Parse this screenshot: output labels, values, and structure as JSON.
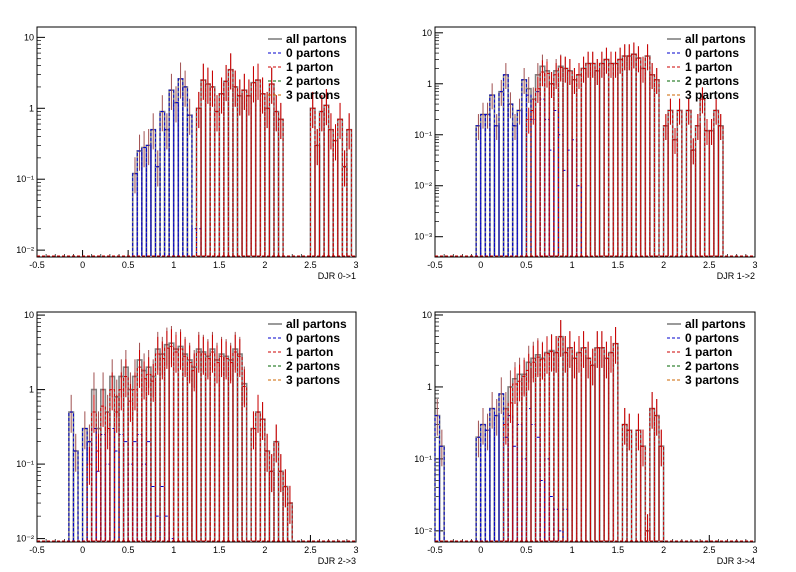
{
  "colors": {
    "all": "#808080",
    "p0": "#0000cc",
    "p1": "#cc0000",
    "p2": "#006600",
    "p3": "#cc6600",
    "frame": "#000000"
  },
  "legend": {
    "all": "all partons",
    "p0": "0 partons",
    "p1": "1 parton",
    "p2": "2 partons",
    "p3": "3 partons"
  },
  "chart_data": [
    {
      "type": "histogram",
      "xlabel": "DJR 0->1",
      "log_y": true,
      "xlim": [
        -0.5,
        3
      ],
      "ylim": [
        0.008,
        14
      ],
      "x_ticks": [
        -0.5,
        0,
        0.5,
        1,
        1.5,
        2,
        2.5,
        3
      ],
      "y_ticks": [
        {
          "v": 0.01,
          "label": "10⁻²"
        },
        {
          "v": 0.1,
          "label": "10⁻¹"
        },
        {
          "v": 1,
          "label": "1"
        },
        {
          "v": 10,
          "label": "10"
        }
      ],
      "bin_x": [
        0.55,
        0.6,
        0.65,
        0.7,
        0.75,
        0.8,
        0.85,
        0.9,
        0.95,
        1.0,
        1.05,
        1.1,
        1.15,
        1.2,
        1.25,
        1.3,
        1.35,
        1.4,
        1.45,
        1.5,
        1.55,
        1.6,
        1.65,
        1.7,
        1.75,
        1.8,
        1.85,
        1.9,
        1.95,
        2.0,
        2.05,
        2.1,
        2.15,
        2.5,
        2.55,
        2.6,
        2.65,
        2.7,
        2.75,
        2.8,
        2.85,
        2.9
      ],
      "bin_width": 0.05,
      "series": [
        {
          "key": "all",
          "values": [
            0.12,
            0.25,
            0.28,
            0.3,
            0.5,
            0.15,
            0.9,
            0.5,
            1.8,
            1.2,
            2.6,
            2.0,
            0.8,
            0.0,
            1.0,
            2.5,
            2.2,
            2.0,
            0.9,
            1.6,
            2.4,
            3.5,
            2.0,
            1.5,
            1.8,
            1.5,
            2.3,
            2.5,
            1.6,
            1.0,
            2.2,
            0.9,
            0.7,
            1.0,
            0.3,
            0.9,
            1.1,
            0.5,
            0.35,
            0.7,
            0.15,
            0.5
          ]
        },
        {
          "key": "p0",
          "values": [
            0.12,
            0.25,
            0.28,
            0.3,
            0.5,
            0.15,
            0.9,
            0.5,
            1.8,
            1.2,
            2.6,
            2.0,
            0.8,
            0.02,
            0.02,
            0.0,
            0,
            0,
            0,
            0,
            0,
            0,
            0,
            0,
            0,
            0,
            0,
            0,
            0,
            0,
            0,
            0,
            0,
            0,
            0,
            0,
            0,
            0,
            0,
            0,
            0,
            0
          ]
        },
        {
          "key": "p1",
          "values": [
            0,
            0,
            0,
            0,
            0,
            0,
            0,
            0,
            0,
            0,
            0,
            0,
            0,
            0,
            1.0,
            2.5,
            2.2,
            2.0,
            0.9,
            1.6,
            2.4,
            3.5,
            2.0,
            1.5,
            1.8,
            1.5,
            2.3,
            2.5,
            1.6,
            1.0,
            2.2,
            0.9,
            0.7,
            1.0,
            0.3,
            0.9,
            1.1,
            0.5,
            0.35,
            0.7,
            0.15,
            0.5
          ]
        }
      ]
    },
    {
      "type": "histogram",
      "xlabel": "DJR 1->2",
      "log_y": true,
      "xlim": [
        -0.5,
        3
      ],
      "ylim": [
        0.0004,
        13
      ],
      "x_ticks": [
        -0.5,
        0,
        0.5,
        1,
        1.5,
        2,
        2.5,
        3
      ],
      "y_ticks": [
        {
          "v": 0.001,
          "label": "10⁻³"
        },
        {
          "v": 0.01,
          "label": "10⁻²"
        },
        {
          "v": 0.1,
          "label": "10⁻¹"
        },
        {
          "v": 1,
          "label": "1"
        },
        {
          "v": 10,
          "label": "10"
        }
      ],
      "bin_x": [
        -0.05,
        0.0,
        0.05,
        0.1,
        0.15,
        0.2,
        0.25,
        0.3,
        0.35,
        0.4,
        0.45,
        0.5,
        0.55,
        0.6,
        0.65,
        0.7,
        0.75,
        0.8,
        0.85,
        0.9,
        0.95,
        1.0,
        1.05,
        1.1,
        1.15,
        1.2,
        1.25,
        1.3,
        1.35,
        1.4,
        1.45,
        1.5,
        1.55,
        1.6,
        1.65,
        1.7,
        1.75,
        1.8,
        1.85,
        1.9,
        1.95,
        2.0,
        2.05,
        2.1,
        2.15,
        2.2,
        2.25,
        2.3,
        2.35,
        2.4,
        2.45,
        2.5,
        2.55,
        2.6
      ],
      "bin_width": 0.05,
      "series": [
        {
          "key": "all",
          "values": [
            0.15,
            0.25,
            0.25,
            0.6,
            0.15,
            0.7,
            1.5,
            0.4,
            0.15,
            0.3,
            1.2,
            0.8,
            0.5,
            1.5,
            2.2,
            1.8,
            1.0,
            1.8,
            2.2,
            2.0,
            1.8,
            1.2,
            1.5,
            2.0,
            2.5,
            2.5,
            1.8,
            2.5,
            3.0,
            2.5,
            2.5,
            3.0,
            3.5,
            3.5,
            3.8,
            3.2,
            2.0,
            3.5,
            1.5,
            1.2,
            0.0,
            0.15,
            0.3,
            0.08,
            0.3,
            0.0,
            0.3,
            0.05,
            0.15,
            0.5,
            0.12,
            0.12,
            0.3,
            0.15
          ]
        },
        {
          "key": "p0",
          "values": [
            0.15,
            0.25,
            0.25,
            0.6,
            0.15,
            0.7,
            1.5,
            0.4,
            0.15,
            0.3,
            1.2,
            0.6,
            0.2,
            0.7,
            0.5,
            0.2,
            0.05,
            0.3,
            0.1,
            0.02,
            0.05,
            0.08,
            0.01,
            0,
            0,
            0,
            0,
            0,
            0,
            0,
            0,
            0,
            0,
            0,
            0,
            0,
            0,
            0,
            0,
            0,
            0,
            0,
            0,
            0,
            0,
            0,
            0,
            0,
            0,
            0,
            0,
            0,
            0,
            0
          ]
        },
        {
          "key": "p1",
          "values": [
            0,
            0,
            0,
            0,
            0,
            0,
            0,
            0,
            0,
            0,
            0,
            0.2,
            0.3,
            0.8,
            1.7,
            1.6,
            1.0,
            1.5,
            2.1,
            2.0,
            1.8,
            1.2,
            1.5,
            2.0,
            2.5,
            2.5,
            1.8,
            2.5,
            3.0,
            2.5,
            2.5,
            3.0,
            3.5,
            3.5,
            3.8,
            3.2,
            2.0,
            3.5,
            1.5,
            1.2,
            0,
            0.15,
            0.3,
            0.08,
            0.3,
            0,
            0.3,
            0.05,
            0.15,
            0.5,
            0.12,
            0.12,
            0.3,
            0.15
          ]
        }
      ]
    },
    {
      "type": "histogram",
      "xlabel": "DJR 2->3",
      "log_y": true,
      "xlim": [
        -0.5,
        3
      ],
      "ylim": [
        0.009,
        11
      ],
      "x_ticks": [
        -0.5,
        0,
        0.5,
        1,
        1.5,
        2,
        2.5,
        3
      ],
      "y_ticks": [
        {
          "v": 0.01,
          "label": "10⁻²"
        },
        {
          "v": 0.1,
          "label": "10⁻¹"
        },
        {
          "v": 1,
          "label": "1"
        },
        {
          "v": 10,
          "label": "10"
        }
      ],
      "bin_x": [
        -0.15,
        -0.1,
        -0.05,
        0.0,
        0.05,
        0.1,
        0.15,
        0.2,
        0.25,
        0.3,
        0.35,
        0.4,
        0.45,
        0.5,
        0.55,
        0.6,
        0.65,
        0.7,
        0.75,
        0.8,
        0.85,
        0.9,
        0.95,
        1.0,
        1.05,
        1.1,
        1.15,
        1.2,
        1.25,
        1.3,
        1.35,
        1.4,
        1.45,
        1.5,
        1.55,
        1.6,
        1.65,
        1.7,
        1.75,
        1.8,
        1.85,
        1.9,
        1.95,
        2.0,
        2.05,
        2.1,
        2.15,
        2.2,
        2.25
      ],
      "bin_width": 0.05,
      "series": [
        {
          "key": "all",
          "values": [
            0.5,
            0.15,
            0.0,
            0.3,
            0.2,
            1.0,
            0.3,
            1.0,
            0.5,
            1.5,
            0.8,
            1.5,
            2.0,
            1.0,
            1.5,
            2.5,
            1.8,
            2.0,
            1.5,
            3.5,
            3.0,
            4.0,
            4.2,
            3.5,
            3.8,
            3.0,
            2.5,
            2.0,
            3.5,
            3.2,
            2.8,
            3.5,
            2.5,
            3.0,
            2.8,
            2.5,
            3.5,
            3.0,
            1.2,
            0.0,
            0.3,
            0.5,
            0.4,
            0.15,
            0.08,
            0.2,
            0.08,
            0.05,
            0.03
          ]
        },
        {
          "key": "p0",
          "values": [
            0.5,
            0.15,
            0.0,
            0.3,
            0.2,
            0.3,
            0.08,
            0.25,
            0.1,
            0.3,
            0.15,
            0.25,
            0.2,
            0.1,
            0.2,
            0.25,
            0.1,
            0.2,
            0.05,
            0.02,
            0.05,
            0.02,
            0.01,
            0,
            0,
            0,
            0,
            0,
            0,
            0,
            0,
            0,
            0,
            0,
            0,
            0,
            0,
            0,
            0,
            0,
            0,
            0,
            0,
            0,
            0,
            0,
            0,
            0,
            0
          ]
        },
        {
          "key": "p1",
          "values": [
            0,
            0,
            0,
            0,
            0.1,
            0.5,
            0.15,
            0.6,
            0.3,
            1.0,
            0.5,
            1.0,
            1.5,
            0.7,
            1.0,
            2.0,
            1.4,
            1.6,
            1.3,
            3.0,
            2.6,
            3.6,
            3.8,
            3.2,
            3.5,
            2.8,
            2.3,
            1.8,
            3.2,
            3.0,
            2.6,
            3.2,
            2.3,
            2.8,
            2.6,
            2.3,
            3.2,
            2.8,
            1.1,
            0,
            0.3,
            0.5,
            0.4,
            0.15,
            0.08,
            0.2,
            0.08,
            0.05,
            0.03
          ]
        }
      ]
    },
    {
      "type": "histogram",
      "xlabel": "DJR 3->4",
      "log_y": true,
      "xlim": [
        -0.5,
        3
      ],
      "ylim": [
        0.007,
        11
      ],
      "x_ticks": [
        -0.5,
        0,
        0.5,
        1,
        1.5,
        2,
        2.5,
        3
      ],
      "y_ticks": [
        {
          "v": 0.01,
          "label": "10⁻²"
        },
        {
          "v": 0.1,
          "label": "10⁻¹"
        },
        {
          "v": 1,
          "label": "1"
        },
        {
          "v": 10,
          "label": "10"
        }
      ],
      "bin_x": [
        -0.5,
        -0.45,
        -0.4,
        -0.35,
        -0.3,
        -0.25,
        -0.2,
        -0.15,
        -0.1,
        -0.05,
        0.0,
        0.05,
        0.1,
        0.15,
        0.2,
        0.25,
        0.3,
        0.35,
        0.4,
        0.45,
        0.5,
        0.55,
        0.6,
        0.65,
        0.7,
        0.75,
        0.8,
        0.85,
        0.9,
        0.95,
        1.0,
        1.05,
        1.1,
        1.15,
        1.2,
        1.25,
        1.3,
        1.35,
        1.4,
        1.45,
        1.5,
        1.55,
        1.6,
        1.65,
        1.7,
        1.75,
        1.8,
        1.85,
        1.9,
        1.95
      ],
      "bin_width": 0.05,
      "series": [
        {
          "key": "all",
          "values": [
            0.4,
            0.15,
            0,
            0,
            0,
            0,
            0,
            0,
            0,
            0.2,
            0.3,
            0.25,
            0.5,
            0.4,
            0.8,
            0.5,
            1.0,
            1.3,
            1.5,
            1.5,
            2.2,
            2.5,
            2.8,
            2.5,
            3.0,
            3.2,
            3.0,
            5.0,
            3.0,
            3.5,
            2.5,
            3.0,
            3.5,
            2.5,
            2.0,
            3.5,
            3.5,
            2.5,
            3.0,
            4.0,
            0.0,
            0.3,
            0.25,
            0.0,
            0.25,
            0.15,
            0.01,
            0.5,
            0.4,
            0.15
          ]
        },
        {
          "key": "p0",
          "values": [
            0.4,
            0.15,
            0,
            0,
            0,
            0,
            0,
            0,
            0,
            0.2,
            0.3,
            0.25,
            0.5,
            0.4,
            0.8,
            0.2,
            0.4,
            0.15,
            0.3,
            0.1,
            0.5,
            0.3,
            0.2,
            0.05,
            0.1,
            0.03,
            0.02,
            0.01,
            0.02,
            0,
            0,
            0,
            0,
            0,
            0,
            0,
            0,
            0,
            0,
            0,
            0,
            0,
            0,
            0,
            0,
            0,
            0,
            0,
            0,
            0
          ]
        },
        {
          "key": "p1",
          "values": [
            0,
            0,
            0,
            0,
            0,
            0,
            0,
            0,
            0,
            0,
            0,
            0,
            0,
            0,
            0,
            0.3,
            0.6,
            1.1,
            1.2,
            1.4,
            1.7,
            2.2,
            2.6,
            2.4,
            2.9,
            3.1,
            3.0,
            5.0,
            3.0,
            3.5,
            2.5,
            3.0,
            3.5,
            2.5,
            2.0,
            3.5,
            3.5,
            2.5,
            3.0,
            4.0,
            0,
            0.3,
            0.25,
            0,
            0.25,
            0.15,
            0.01,
            0.5,
            0.4,
            0.15
          ]
        }
      ]
    }
  ]
}
